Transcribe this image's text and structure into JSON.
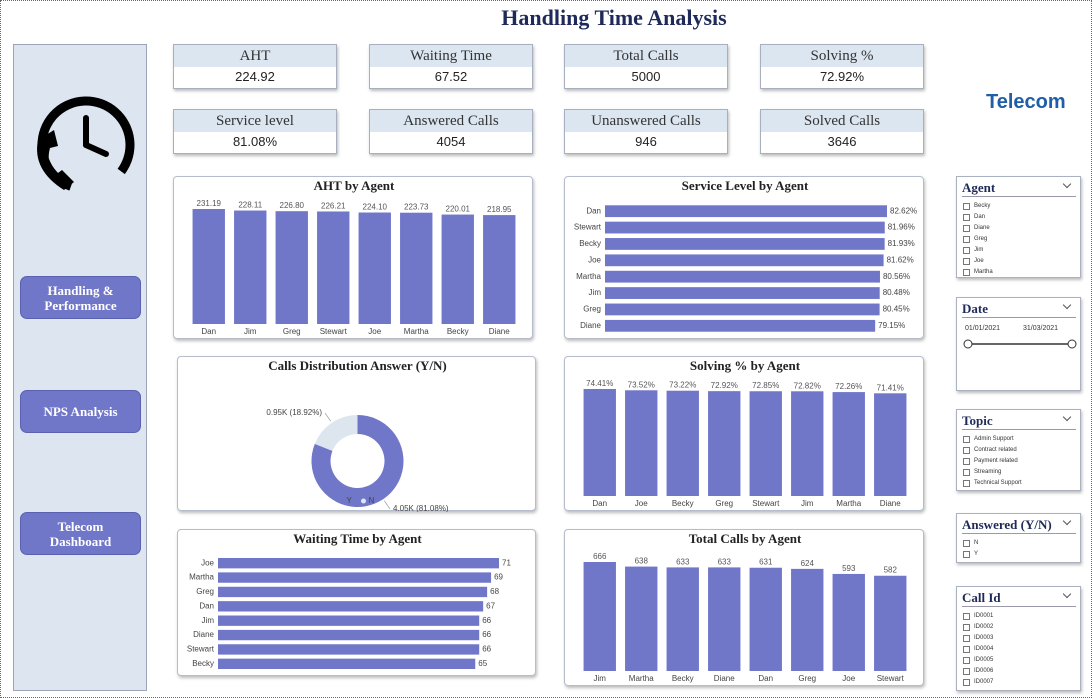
{
  "header": {
    "title": "Handling Time Analysis"
  },
  "logo": {
    "text": "Telecom"
  },
  "nav": [
    "Handling & Performance",
    "NPS Analysis",
    "Telecom Dashboard"
  ],
  "kpis": [
    {
      "label": "AHT",
      "value": "224.92"
    },
    {
      "label": "Waiting Time",
      "value": "67.52"
    },
    {
      "label": "Total Calls",
      "value": "5000"
    },
    {
      "label": "Solving %",
      "value": "72.92%"
    },
    {
      "label": "Service level",
      "value": "81.08%"
    },
    {
      "label": "Answered Calls",
      "value": "4054"
    },
    {
      "label": "Unanswered Calls",
      "value": "946"
    },
    {
      "label": "Solved Calls",
      "value": "3646"
    }
  ],
  "slicers": [
    {
      "title": "Agent",
      "items": [
        "Becky",
        "Dan",
        "Diane",
        "Greg",
        "Jim",
        "Joe",
        "Martha"
      ]
    },
    {
      "title": "Date",
      "from": "01/01/2021",
      "to": "31/03/2021"
    },
    {
      "title": "Topic",
      "items": [
        "Admin Support",
        "Contract related",
        "Payment related",
        "Streaming",
        "Technical Support"
      ]
    },
    {
      "title": "Answered (Y/N)",
      "items": [
        "N",
        "Y"
      ]
    },
    {
      "title": "Call Id",
      "items": [
        "ID0001",
        "ID0002",
        "ID0003",
        "ID0004",
        "ID0005",
        "ID0006",
        "ID0007"
      ]
    }
  ],
  "chart_data": [
    {
      "type": "bar",
      "orientation": "vertical",
      "title": "AHT by Agent",
      "categories": [
        "Dan",
        "Jim",
        "Greg",
        "Stewart",
        "Joe",
        "Martha",
        "Becky",
        "Diane"
      ],
      "values": [
        231.19,
        228.11,
        226.8,
        226.21,
        224.1,
        223.73,
        220.01,
        218.95
      ],
      "value_labels": [
        "231.19",
        "228.11",
        "226.80",
        "226.21",
        "224.10",
        "223.73",
        "220.01",
        "218.95"
      ],
      "color": "#7076c8"
    },
    {
      "type": "bar",
      "orientation": "horizontal",
      "title": "Service Level by Agent",
      "categories": [
        "Dan",
        "Stewart",
        "Becky",
        "Joe",
        "Martha",
        "Jim",
        "Greg",
        "Diane"
      ],
      "values": [
        82.62,
        81.96,
        81.93,
        81.62,
        80.56,
        80.48,
        80.45,
        79.15
      ],
      "value_labels": [
        "82.62%",
        "81.96%",
        "81.93%",
        "81.62%",
        "80.56%",
        "80.48%",
        "80.45%",
        "79.15%"
      ],
      "color": "#7076c8"
    },
    {
      "type": "pie",
      "title": "Calls Distribution Answer (Y/N)",
      "categories": [
        "Y",
        "N"
      ],
      "values": [
        4054,
        946
      ],
      "value_labels": [
        "4.05K (81.08%)",
        "0.95K (18.92%)"
      ],
      "colors": [
        "#7076c8",
        "#dde6ef"
      ]
    },
    {
      "type": "bar",
      "orientation": "vertical",
      "title": "Solving % by Agent",
      "categories": [
        "Dan",
        "Joe",
        "Becky",
        "Greg",
        "Stewart",
        "Jim",
        "Martha",
        "Diane"
      ],
      "values": [
        74.41,
        73.52,
        73.22,
        72.92,
        72.85,
        72.82,
        72.26,
        71.41
      ],
      "value_labels": [
        "74.41%",
        "73.52%",
        "73.22%",
        "72.92%",
        "72.85%",
        "72.82%",
        "72.26%",
        "71.41%"
      ],
      "color": "#7076c8"
    },
    {
      "type": "bar",
      "orientation": "horizontal",
      "title": "Waiting Time by Agent",
      "categories": [
        "Joe",
        "Martha",
        "Greg",
        "Dan",
        "Jim",
        "Diane",
        "Stewart",
        "Becky"
      ],
      "values": [
        71,
        69,
        68,
        67,
        66,
        66,
        66,
        65
      ],
      "color": "#7076c8"
    },
    {
      "type": "bar",
      "orientation": "vertical",
      "title": "Total Calls by Agent",
      "categories": [
        "Jim",
        "Martha",
        "Becky",
        "Diane",
        "Dan",
        "Greg",
        "Joe",
        "Stewart"
      ],
      "values": [
        666,
        638,
        633,
        633,
        631,
        624,
        593,
        582
      ],
      "color": "#7076c8"
    }
  ]
}
